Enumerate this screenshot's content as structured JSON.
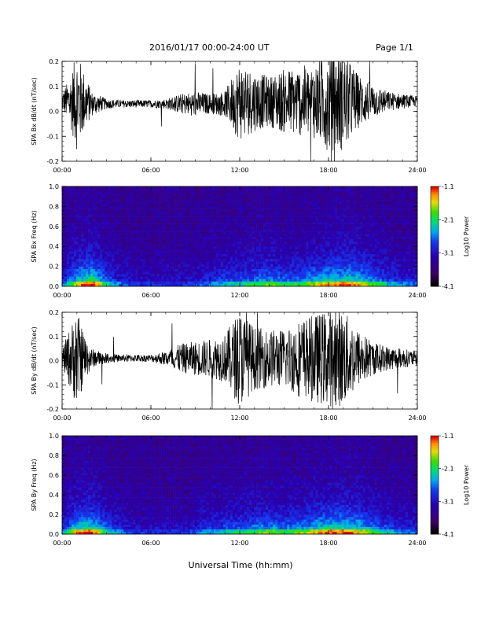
{
  "header": {
    "title": "2016/01/17  00:00-24:00 UT",
    "page": "Page 1/1"
  },
  "xlabel": "Universal Time (hh:mm)",
  "chart_data": [
    {
      "type": "line",
      "ylabel": "SPA Bx dB/dt (nT/sec)",
      "xlim": [
        0,
        24
      ],
      "ylim": [
        -0.2,
        0.2
      ],
      "xticks": [
        "00:00",
        "06:00",
        "12:00",
        "18:00",
        "24:00"
      ],
      "yticks": [
        "-0.2",
        "-0.1",
        "0.0",
        "0.1",
        "0.2"
      ],
      "series": [
        {
          "x": [
            0,
            0.5,
            1,
            1.5,
            2,
            3,
            4,
            5,
            6,
            7,
            8,
            9,
            10,
            11,
            12,
            13,
            14,
            15,
            16,
            17,
            18,
            19,
            20,
            21,
            22,
            23,
            24
          ],
          "offset": [
            0.04,
            0.04,
            0.04,
            0.04,
            0.03,
            0.03,
            0.03,
            0.03,
            0.03,
            0.03,
            0.03,
            0.03,
            0.03,
            0.03,
            0.04,
            0.04,
            0.04,
            0.04,
            0.04,
            0.04,
            0.04,
            0.04,
            0.04,
            0.04,
            0.04,
            0.04,
            0.04
          ],
          "amplitude": [
            0.04,
            0.09,
            0.2,
            0.12,
            0.05,
            0.02,
            0.015,
            0.015,
            0.015,
            0.02,
            0.04,
            0.05,
            0.04,
            0.05,
            0.16,
            0.12,
            0.1,
            0.13,
            0.14,
            0.15,
            0.2,
            0.2,
            0.11,
            0.07,
            0.04,
            0.03,
            0.02
          ]
        }
      ]
    },
    {
      "type": "heatmap",
      "ylabel": "SPA Bx Freq (Hz)",
      "xlim": [
        0,
        24
      ],
      "ylim": [
        0,
        1.0
      ],
      "xticks": [
        "00:00",
        "06:00",
        "12:00",
        "18:00",
        "24:00"
      ],
      "yticks": [
        "0.0",
        "0.2",
        "0.4",
        "0.6",
        "0.8",
        "1.0"
      ],
      "colorbar": {
        "label": "Log10 Power",
        "min": -4.1,
        "max": -1.1,
        "ticks": [
          "-1.1",
          "-2.1",
          "-3.1",
          "-4.1"
        ]
      },
      "activity": [
        0.3,
        0.75,
        0.95,
        0.5,
        0.3,
        0.22,
        0.2,
        0.2,
        0.2,
        0.25,
        0.35,
        0.45,
        0.45,
        0.55,
        0.6,
        0.55,
        0.55,
        0.7,
        0.8,
        0.85,
        0.8,
        0.6,
        0.45,
        0.35,
        0.3
      ]
    },
    {
      "type": "line",
      "ylabel": "SPA By dB/dt (nT/sec)",
      "xlim": [
        0,
        24
      ],
      "ylim": [
        -0.2,
        0.2
      ],
      "xticks": [
        "00:00",
        "06:00",
        "12:00",
        "18:00",
        "24:00"
      ],
      "yticks": [
        "-0.2",
        "-0.1",
        "0.0",
        "0.1",
        "0.2"
      ],
      "series": [
        {
          "x": [
            0,
            0.5,
            1,
            1.5,
            2,
            3,
            4,
            5,
            6,
            7,
            8,
            9,
            10,
            11,
            12,
            13,
            14,
            15,
            16,
            17,
            18,
            19,
            20,
            21,
            22,
            23,
            24
          ],
          "offset": [
            0.01,
            0.01,
            0.01,
            0.01,
            0.01,
            0.01,
            0.01,
            0.01,
            0.01,
            0.01,
            0.01,
            0.01,
            0.01,
            0.01,
            0.01,
            0.01,
            0.01,
            0.01,
            0.01,
            0.01,
            0.01,
            0.01,
            0.01,
            0.01,
            0.01,
            0.01,
            0.01
          ],
          "amplitude": [
            0.04,
            0.12,
            0.2,
            0.1,
            0.04,
            0.02,
            0.015,
            0.015,
            0.015,
            0.03,
            0.06,
            0.07,
            0.08,
            0.1,
            0.2,
            0.13,
            0.12,
            0.12,
            0.16,
            0.18,
            0.2,
            0.2,
            0.12,
            0.07,
            0.05,
            0.04,
            0.03
          ]
        }
      ]
    },
    {
      "type": "heatmap",
      "ylabel": "SPA By Freq (Hz)",
      "xlim": [
        0,
        24
      ],
      "ylim": [
        0,
        1.0
      ],
      "xticks": [
        "00:00",
        "06:00",
        "12:00",
        "18:00",
        "24:00"
      ],
      "yticks": [
        "0.0",
        "0.2",
        "0.4",
        "0.6",
        "0.8",
        "1.0"
      ],
      "colorbar": {
        "label": "Log10 Power",
        "min": -4.1,
        "max": -1.1,
        "ticks": [
          "-1.1",
          "-2.1",
          "-3.1",
          "-4.1"
        ]
      },
      "activity": [
        0.35,
        0.8,
        0.9,
        0.5,
        0.3,
        0.22,
        0.2,
        0.2,
        0.2,
        0.25,
        0.4,
        0.45,
        0.5,
        0.55,
        0.65,
        0.55,
        0.6,
        0.75,
        0.85,
        0.85,
        0.8,
        0.6,
        0.45,
        0.35,
        0.3
      ]
    }
  ],
  "colors": {
    "trace": "#000000",
    "background": "#ffffff"
  }
}
